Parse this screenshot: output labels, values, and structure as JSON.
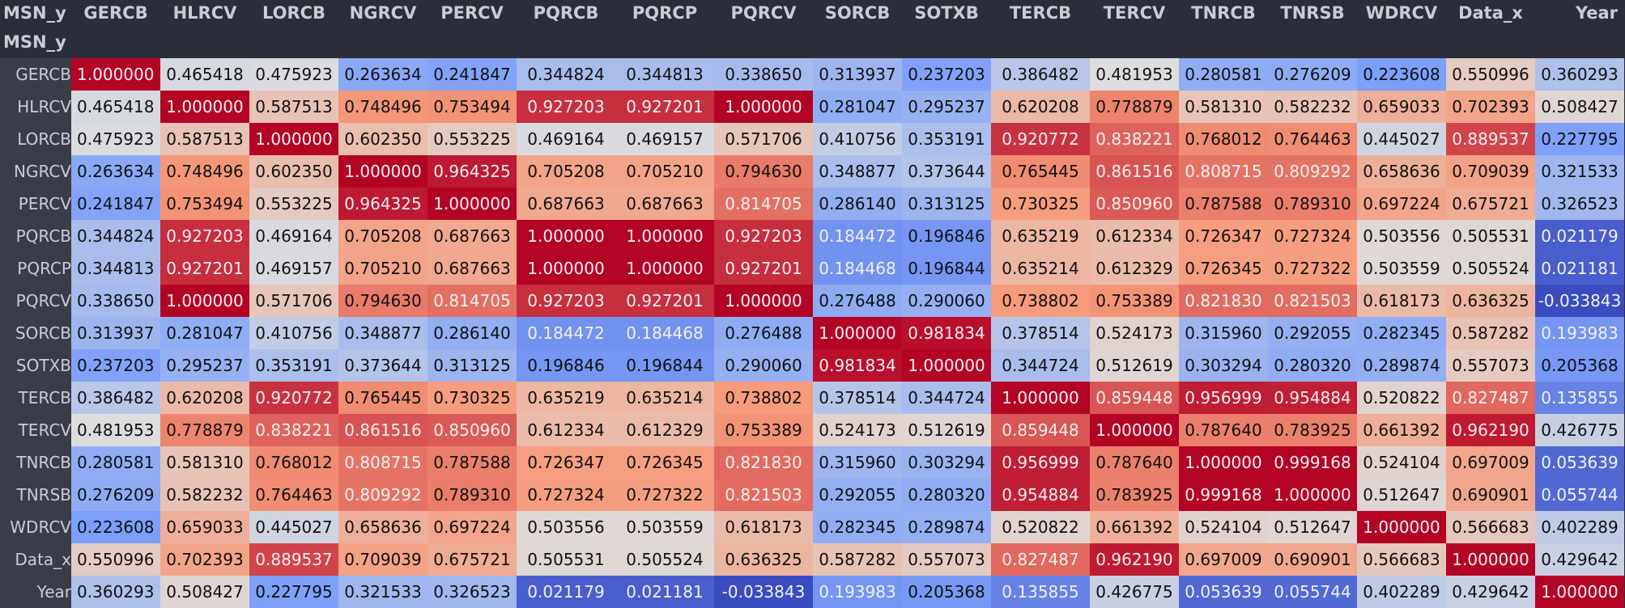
{
  "table": {
    "index_name": "MSN_y",
    "columns": [
      "GERCB",
      "HLRCV",
      "LORCB",
      "NGRCV",
      "PERCV",
      "PQRCB",
      "PQRCP",
      "PQRCV",
      "SORCB",
      "SOTXB",
      "TERCB",
      "TERCV",
      "TNRCB",
      "TNRSB",
      "WDRCV",
      "Data_x",
      "Year"
    ],
    "rows": [
      {
        "label": "GERCB",
        "values": [
          "1.000000",
          "0.465418",
          "0.475923",
          "0.263634",
          "0.241847",
          "0.344824",
          "0.344813",
          "0.338650",
          "0.313937",
          "0.237203",
          "0.386482",
          "0.481953",
          "0.280581",
          "0.276209",
          "0.223608",
          "0.550996",
          "0.360293"
        ]
      },
      {
        "label": "HLRCV",
        "values": [
          "0.465418",
          "1.000000",
          "0.587513",
          "0.748496",
          "0.753494",
          "0.927203",
          "0.927201",
          "1.000000",
          "0.281047",
          "0.295237",
          "0.620208",
          "0.778879",
          "0.581310",
          "0.582232",
          "0.659033",
          "0.702393",
          "0.508427"
        ]
      },
      {
        "label": "LORCB",
        "values": [
          "0.475923",
          "0.587513",
          "1.000000",
          "0.602350",
          "0.553225",
          "0.469164",
          "0.469157",
          "0.571706",
          "0.410756",
          "0.353191",
          "0.920772",
          "0.838221",
          "0.768012",
          "0.764463",
          "0.445027",
          "0.889537",
          "0.227795"
        ]
      },
      {
        "label": "NGRCV",
        "values": [
          "0.263634",
          "0.748496",
          "0.602350",
          "1.000000",
          "0.964325",
          "0.705208",
          "0.705210",
          "0.794630",
          "0.348877",
          "0.373644",
          "0.765445",
          "0.861516",
          "0.808715",
          "0.809292",
          "0.658636",
          "0.709039",
          "0.321533"
        ]
      },
      {
        "label": "PERCV",
        "values": [
          "0.241847",
          "0.753494",
          "0.553225",
          "0.964325",
          "1.000000",
          "0.687663",
          "0.687663",
          "0.814705",
          "0.286140",
          "0.313125",
          "0.730325",
          "0.850960",
          "0.787588",
          "0.789310",
          "0.697224",
          "0.675721",
          "0.326523"
        ]
      },
      {
        "label": "PQRCB",
        "values": [
          "0.344824",
          "0.927203",
          "0.469164",
          "0.705208",
          "0.687663",
          "1.000000",
          "1.000000",
          "0.927203",
          "0.184472",
          "0.196846",
          "0.635219",
          "0.612334",
          "0.726347",
          "0.727324",
          "0.503556",
          "0.505531",
          "0.021179"
        ]
      },
      {
        "label": "PQRCP",
        "values": [
          "0.344813",
          "0.927201",
          "0.469157",
          "0.705210",
          "0.687663",
          "1.000000",
          "1.000000",
          "0.927201",
          "0.184468",
          "0.196844",
          "0.635214",
          "0.612329",
          "0.726345",
          "0.727322",
          "0.503559",
          "0.505524",
          "0.021181"
        ]
      },
      {
        "label": "PQRCV",
        "values": [
          "0.338650",
          "1.000000",
          "0.571706",
          "0.794630",
          "0.814705",
          "0.927203",
          "0.927201",
          "1.000000",
          "0.276488",
          "0.290060",
          "0.738802",
          "0.753389",
          "0.821830",
          "0.821503",
          "0.618173",
          "0.636325",
          "-0.033843"
        ]
      },
      {
        "label": "SORCB",
        "values": [
          "0.313937",
          "0.281047",
          "0.410756",
          "0.348877",
          "0.286140",
          "0.184472",
          "0.184468",
          "0.276488",
          "1.000000",
          "0.981834",
          "0.378514",
          "0.524173",
          "0.315960",
          "0.292055",
          "0.282345",
          "0.587282",
          "0.193983"
        ]
      },
      {
        "label": "SOTXB",
        "values": [
          "0.237203",
          "0.295237",
          "0.353191",
          "0.373644",
          "0.313125",
          "0.196846",
          "0.196844",
          "0.290060",
          "0.981834",
          "1.000000",
          "0.344724",
          "0.512619",
          "0.303294",
          "0.280320",
          "0.289874",
          "0.557073",
          "0.205368"
        ]
      },
      {
        "label": "TERCB",
        "values": [
          "0.386482",
          "0.620208",
          "0.920772",
          "0.765445",
          "0.730325",
          "0.635219",
          "0.635214",
          "0.738802",
          "0.378514",
          "0.344724",
          "1.000000",
          "0.859448",
          "0.956999",
          "0.954884",
          "0.520822",
          "0.827487",
          "0.135855"
        ]
      },
      {
        "label": "TERCV",
        "values": [
          "0.481953",
          "0.778879",
          "0.838221",
          "0.861516",
          "0.850960",
          "0.612334",
          "0.612329",
          "0.753389",
          "0.524173",
          "0.512619",
          "0.859448",
          "1.000000",
          "0.787640",
          "0.783925",
          "0.661392",
          "0.962190",
          "0.426775"
        ]
      },
      {
        "label": "TNRCB",
        "values": [
          "0.280581",
          "0.581310",
          "0.768012",
          "0.808715",
          "0.787588",
          "0.726347",
          "0.726345",
          "0.821830",
          "0.315960",
          "0.303294",
          "0.956999",
          "0.787640",
          "1.000000",
          "0.999168",
          "0.524104",
          "0.697009",
          "0.053639"
        ]
      },
      {
        "label": "TNRSB",
        "values": [
          "0.276209",
          "0.582232",
          "0.764463",
          "0.809292",
          "0.789310",
          "0.727324",
          "0.727322",
          "0.821503",
          "0.292055",
          "0.280320",
          "0.954884",
          "0.783925",
          "0.999168",
          "1.000000",
          "0.512647",
          "0.690901",
          "0.055744"
        ]
      },
      {
        "label": "WDRCV",
        "values": [
          "0.223608",
          "0.659033",
          "0.445027",
          "0.658636",
          "0.697224",
          "0.503556",
          "0.503559",
          "0.618173",
          "0.282345",
          "0.289874",
          "0.520822",
          "0.661392",
          "0.524104",
          "0.512647",
          "1.000000",
          "0.566683",
          "0.402289"
        ]
      },
      {
        "label": "Data_x",
        "values": [
          "0.550996",
          "0.702393",
          "0.889537",
          "0.709039",
          "0.675721",
          "0.505531",
          "0.505524",
          "0.636325",
          "0.587282",
          "0.557073",
          "0.827487",
          "0.962190",
          "0.697009",
          "0.690901",
          "0.566683",
          "1.000000",
          "0.429642"
        ]
      },
      {
        "label": "Year",
        "values": [
          "0.360293",
          "0.508427",
          "0.227795",
          "0.321533",
          "0.326523",
          "0.021179",
          "0.021181",
          "-0.033843",
          "0.193983",
          "0.205368",
          "0.135855",
          "0.426775",
          "0.053639",
          "0.055744",
          "0.402289",
          "0.429642",
          "1.000000"
        ]
      }
    ]
  },
  "colormap": {
    "name": "coolwarm",
    "low": "#3b4cc0",
    "mid": "#dddddd",
    "high": "#b40426"
  }
}
